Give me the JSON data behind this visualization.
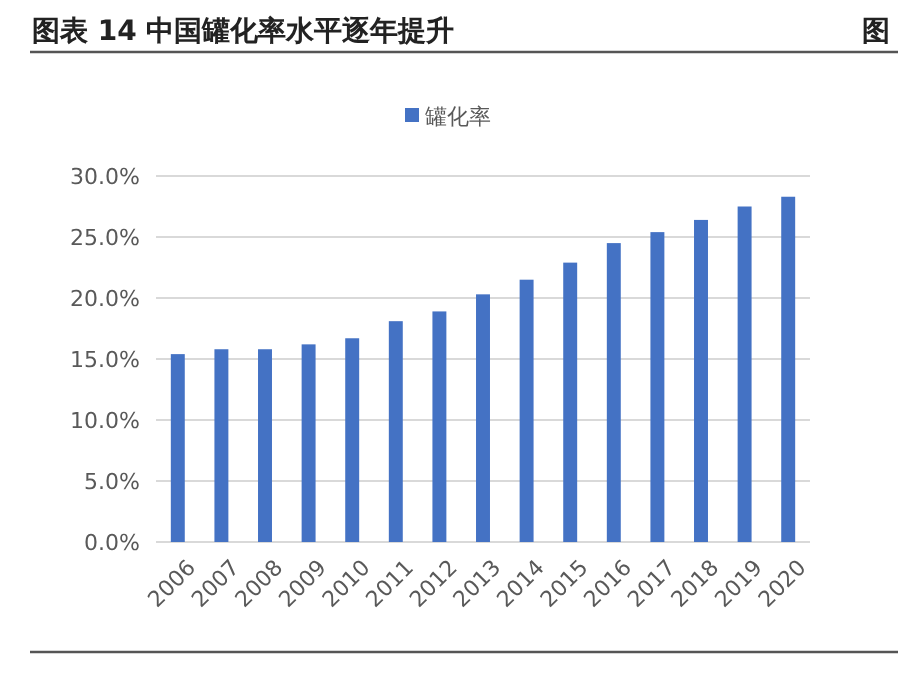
{
  "chart_data": {
    "type": "bar",
    "title": "图表 14  中国罐化率水平逐年提升",
    "annotations": [
      "图"
    ],
    "categories": [
      "2006",
      "2007",
      "2008",
      "2009",
      "2010",
      "2011",
      "2012",
      "2013",
      "2014",
      "2015",
      "2016",
      "2017",
      "2018",
      "2019",
      "2020"
    ],
    "series": [
      {
        "name": "罐化率",
        "color": "#4472c4",
        "values": [
          15.4,
          15.8,
          15.8,
          16.2,
          16.7,
          18.1,
          18.9,
          20.3,
          21.5,
          22.9,
          24.5,
          25.4,
          26.4,
          27.5,
          28.3
        ]
      }
    ],
    "ylim": [
      0,
      30
    ],
    "yticks": [
      {
        "value": 0,
        "label": "0.0%"
      },
      {
        "value": 5,
        "label": "5.0%"
      },
      {
        "value": 10,
        "label": "10.0%"
      },
      {
        "value": 15,
        "label": "15.0%"
      },
      {
        "value": 20,
        "label": "20.0%"
      },
      {
        "value": 25,
        "label": "25.0%"
      },
      {
        "value": 30,
        "label": "30.0%"
      }
    ],
    "grid": "y",
    "legend": "top"
  }
}
